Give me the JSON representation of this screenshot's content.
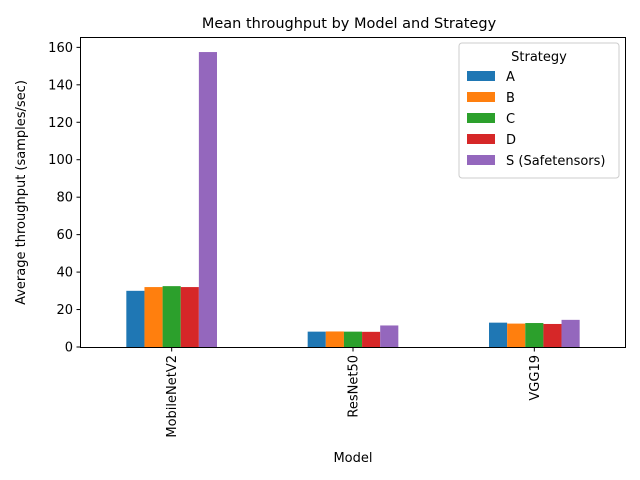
{
  "chart_data": {
    "type": "bar",
    "title": "Mean throughput by Model and Strategy",
    "xlabel": "Model",
    "ylabel": "Average throughput (samples/sec)",
    "categories": [
      "MobileNetV2",
      "ResNet50",
      "VGG19"
    ],
    "ylim": [
      0,
      165
    ],
    "yticks": [
      0,
      20,
      40,
      60,
      80,
      100,
      120,
      140,
      160
    ],
    "grid": false,
    "legend": {
      "title": "Strategy",
      "placement": "top-right"
    },
    "series": [
      {
        "name": "A",
        "color": "#1f77b4",
        "values": [
          30.0,
          8.2,
          13.0
        ]
      },
      {
        "name": "B",
        "color": "#ff7f0e",
        "values": [
          32.0,
          8.3,
          12.5
        ]
      },
      {
        "name": "C",
        "color": "#2ca02c",
        "values": [
          32.5,
          8.2,
          12.8
        ]
      },
      {
        "name": "D",
        "color": "#d62728",
        "values": [
          32.0,
          8.1,
          12.3
        ]
      },
      {
        "name": "S (Safetensors)",
        "color": "#9467bd",
        "values": [
          157.5,
          11.5,
          14.5
        ]
      }
    ]
  }
}
